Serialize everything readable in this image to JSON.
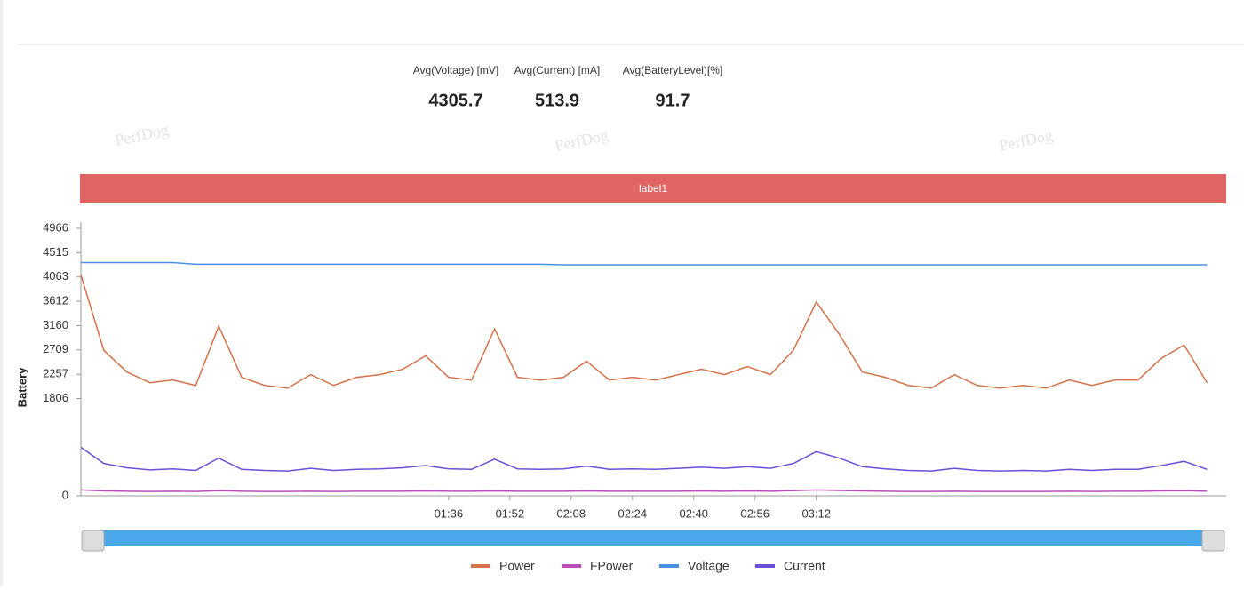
{
  "header": {
    "stats": [
      {
        "label": "Avg(Voltage) [mV]",
        "value": "4305.7"
      },
      {
        "label": "Avg(Current) [mA]",
        "value": "513.9"
      },
      {
        "label": "Avg(BatteryLevel)[%]",
        "value": "91.7"
      }
    ],
    "watermark": "PerfDog",
    "banner": "label1"
  },
  "chart_data": {
    "type": "line",
    "ylabel": "Battery",
    "x": [
      0,
      6,
      12,
      18,
      24,
      30,
      36,
      42,
      48,
      54,
      60,
      66,
      72,
      78,
      84,
      90,
      96,
      102,
      108,
      114,
      120,
      126,
      132,
      138,
      144,
      150,
      156,
      162,
      168,
      174,
      180,
      186,
      192,
      198,
      204,
      210,
      216,
      222,
      228,
      234,
      240,
      246,
      252,
      258,
      264,
      270,
      276,
      282,
      288,
      294
    ],
    "xlim": [
      0,
      299
    ],
    "xticks": [
      {
        "value": 96,
        "label": "01:36"
      },
      {
        "value": 112,
        "label": "01:52"
      },
      {
        "value": 128,
        "label": "02:08"
      },
      {
        "value": 144,
        "label": "02:24"
      },
      {
        "value": 160,
        "label": "02:40"
      },
      {
        "value": 176,
        "label": "02:56"
      },
      {
        "value": 192,
        "label": "03:12"
      }
    ],
    "ylim": [
      0,
      4966
    ],
    "yticks": [
      0,
      1806,
      2257,
      2709,
      3160,
      3612,
      4063,
      4515,
      4966
    ],
    "legend": "bottom",
    "series": [
      {
        "name": "Power",
        "color": "#d4714a",
        "values": [
          4100,
          2700,
          2300,
          2100,
          2150,
          2050,
          3150,
          2200,
          2050,
          2000,
          2250,
          2050,
          2200,
          2250,
          2350,
          2600,
          2200,
          2150,
          3100,
          2200,
          2150,
          2200,
          2500,
          2150,
          2200,
          2150,
          2250,
          2350,
          2250,
          2400,
          2250,
          2700,
          3600,
          3000,
          2300,
          2200,
          2050,
          2000,
          2250,
          2050,
          2000,
          2050,
          2000,
          2150,
          2050,
          2150,
          2150,
          2550,
          2800,
          2100
        ]
      },
      {
        "name": "FPower",
        "color": "#b94fb9",
        "values": [
          110,
          90,
          85,
          80,
          85,
          80,
          95,
          85,
          80,
          80,
          85,
          80,
          85,
          85,
          85,
          90,
          85,
          85,
          90,
          85,
          85,
          85,
          90,
          85,
          85,
          85,
          85,
          90,
          85,
          90,
          85,
          95,
          110,
          100,
          90,
          85,
          80,
          80,
          85,
          80,
          80,
          80,
          80,
          85,
          80,
          85,
          85,
          90,
          95,
          85
        ]
      },
      {
        "name": "Voltage",
        "color": "#4a90e2",
        "values": [
          4330,
          4330,
          4330,
          4330,
          4330,
          4300,
          4300,
          4300,
          4300,
          4300,
          4300,
          4300,
          4300,
          4300,
          4300,
          4300,
          4300,
          4300,
          4300,
          4300,
          4300,
          4290,
          4290,
          4290,
          4290,
          4290,
          4290,
          4290,
          4290,
          4290,
          4290,
          4290,
          4290,
          4290,
          4290,
          4290,
          4290,
          4290,
          4290,
          4290,
          4290,
          4290,
          4290,
          4290,
          4290,
          4290,
          4290,
          4290,
          4290,
          4290
        ]
      },
      {
        "name": "Current",
        "color": "#6b4fd6",
        "values": [
          900,
          600,
          520,
          480,
          500,
          470,
          700,
          490,
          470,
          460,
          510,
          470,
          490,
          500,
          520,
          560,
          500,
          490,
          680,
          500,
          490,
          500,
          550,
          490,
          500,
          490,
          510,
          530,
          510,
          540,
          510,
          600,
          820,
          700,
          540,
          500,
          470,
          460,
          510,
          470,
          460,
          470,
          460,
          490,
          470,
          490,
          490,
          560,
          640,
          490
        ]
      }
    ]
  }
}
